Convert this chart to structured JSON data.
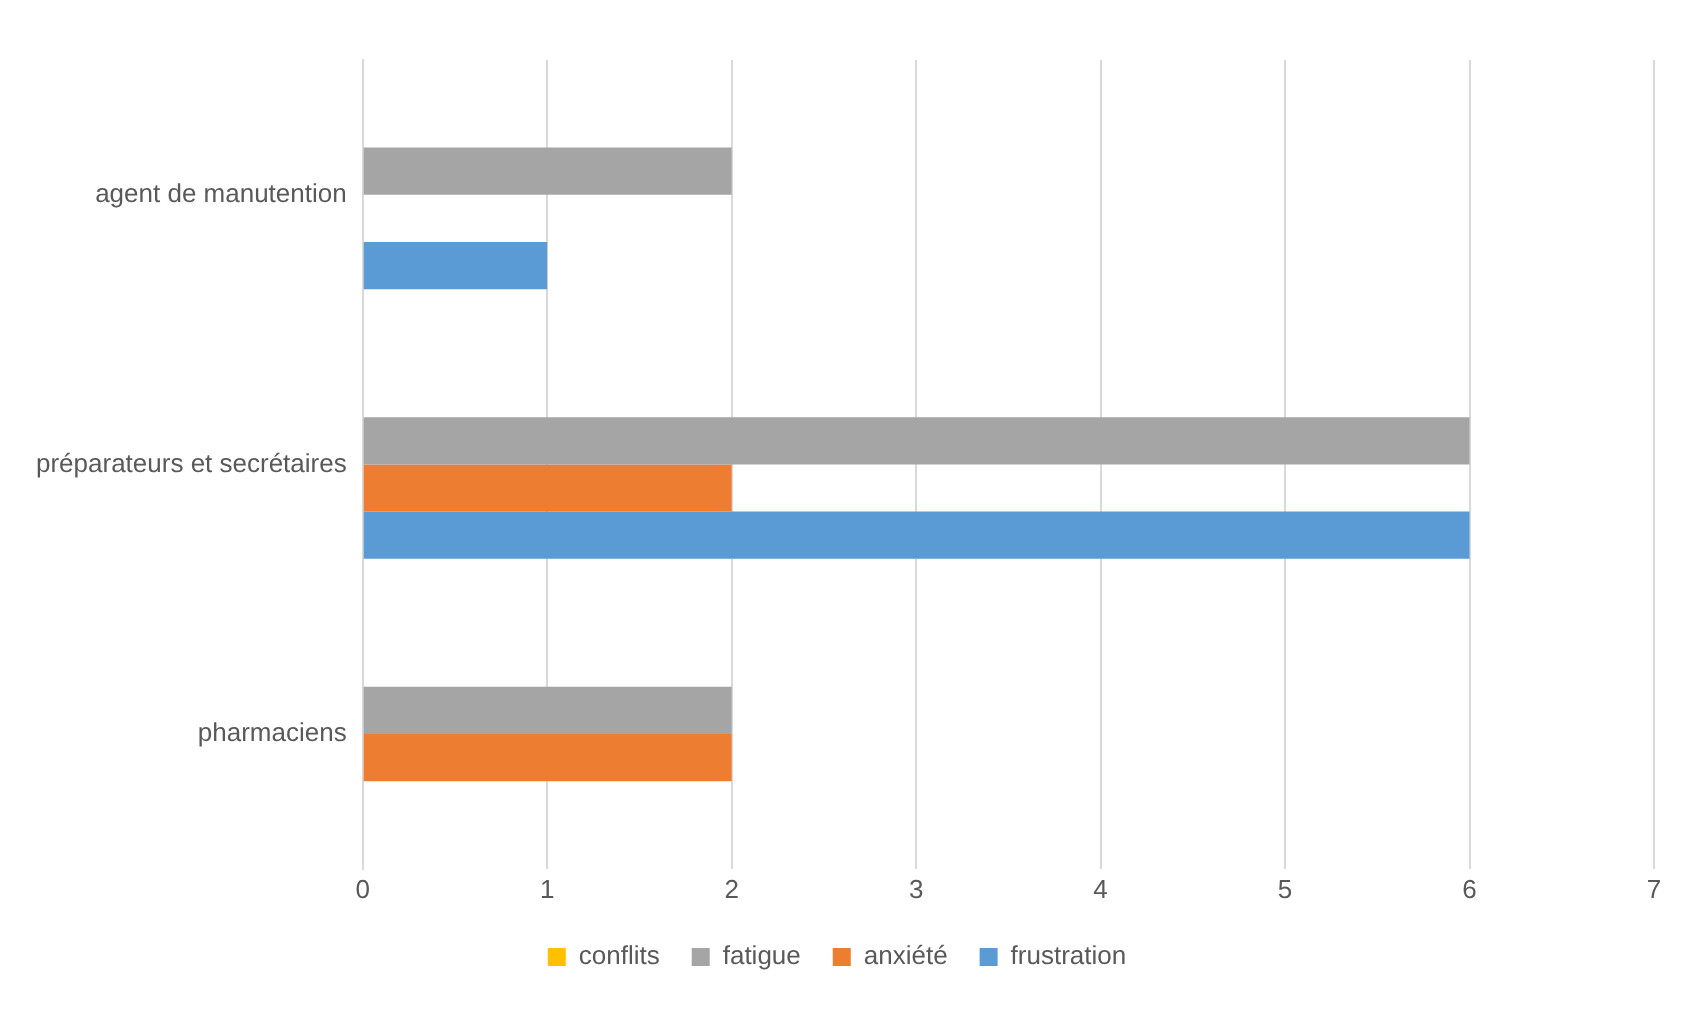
{
  "chart_data": {
    "type": "bar",
    "orientation": "horizontal",
    "categories": [
      "agent de manutention",
      "préparateurs et secrétaires",
      "pharmaciens"
    ],
    "series": [
      {
        "name": "conflits",
        "color": "#ffc000",
        "values": [
          0,
          0,
          0
        ]
      },
      {
        "name": "fatigue",
        "color": "#a5a5a5",
        "values": [
          2,
          6,
          2
        ]
      },
      {
        "name": "anxiété",
        "color": "#ed7d31",
        "values": [
          0,
          2,
          2
        ]
      },
      {
        "name": "frustration",
        "color": "#5b9bd5",
        "values": [
          1,
          6,
          0
        ]
      }
    ],
    "xlim": [
      0,
      7
    ],
    "xticks": [
      0,
      1,
      2,
      3,
      4,
      5,
      6,
      7
    ],
    "grid": "x",
    "legend": "bottom"
  }
}
